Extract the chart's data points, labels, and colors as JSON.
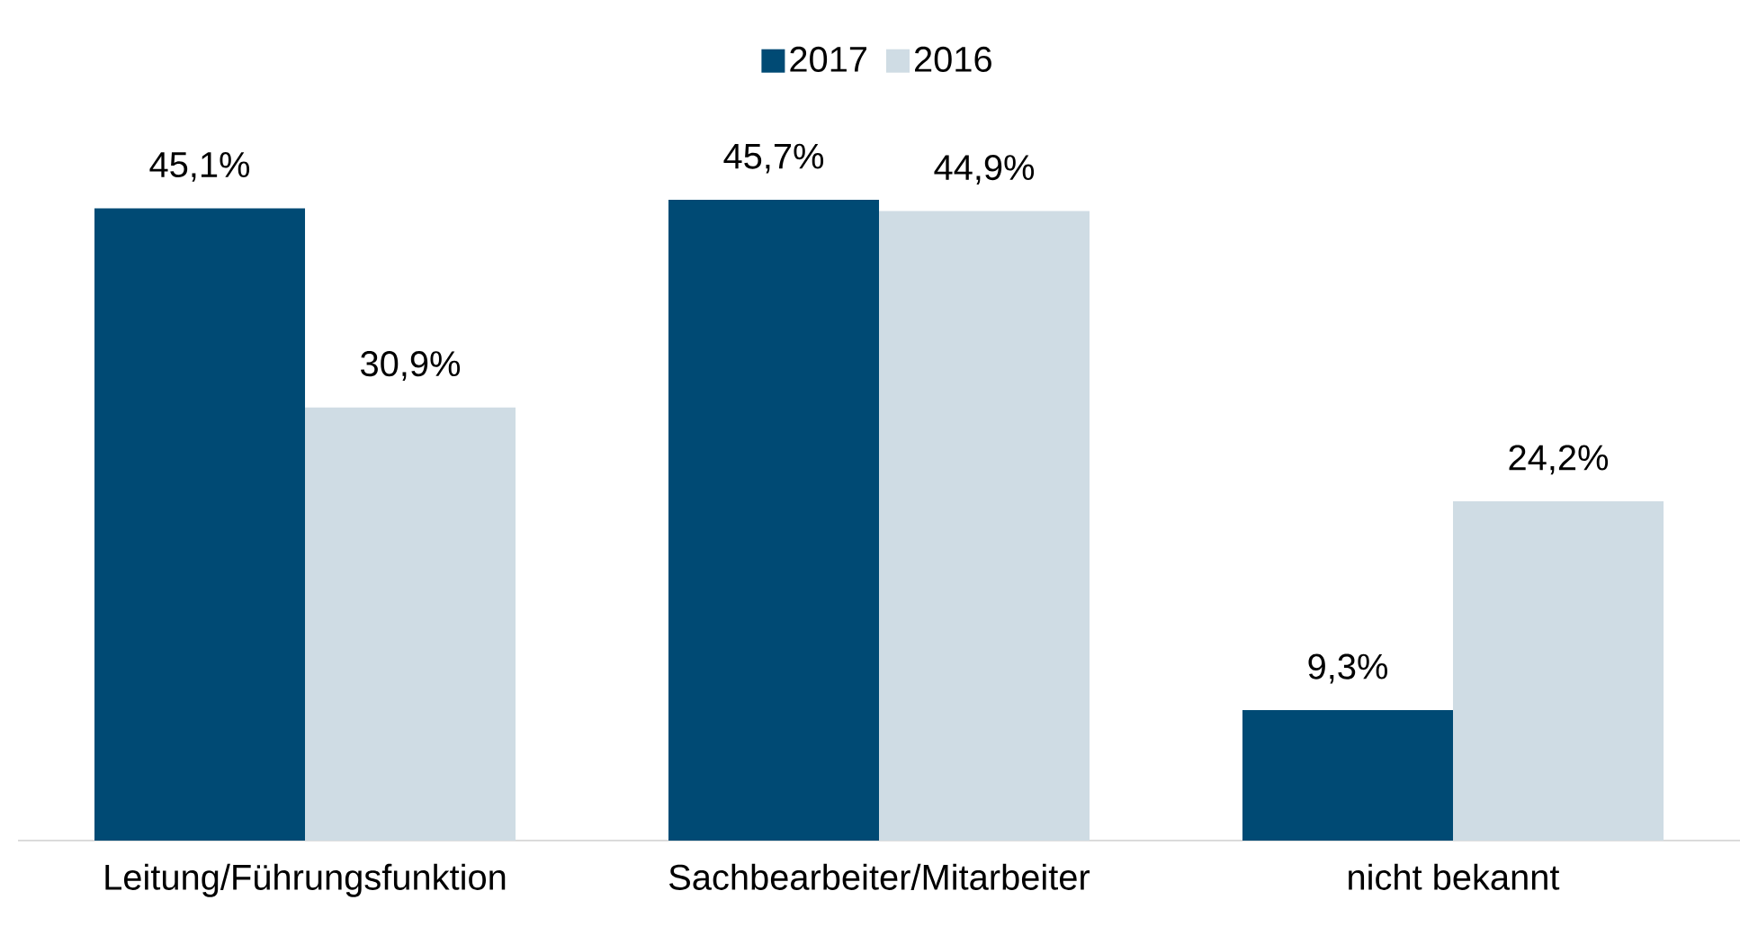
{
  "chart_data": {
    "type": "bar",
    "categories": [
      "Leitung/Führungsfunktion",
      "Sachbearbeiter/Mitarbeiter",
      "nicht bekannt"
    ],
    "series": [
      {
        "name": "2017",
        "color": "#004a74",
        "values": [
          45.1,
          45.7,
          9.3
        ],
        "value_labels": [
          "45,1%",
          "45,7%",
          "9,3%"
        ]
      },
      {
        "name": "2016",
        "color": "#cfdce4",
        "values": [
          30.9,
          44.9,
          24.2
        ],
        "value_labels": [
          "30,9%",
          "44,9%",
          "24,2%"
        ]
      }
    ],
    "legend": "top"
  }
}
